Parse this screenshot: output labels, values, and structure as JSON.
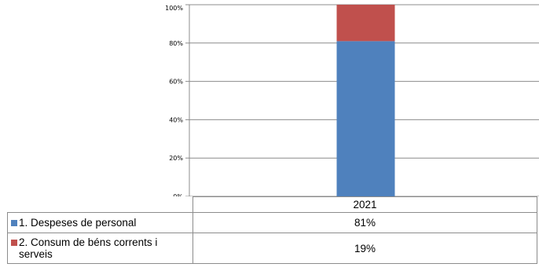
{
  "chart_data": {
    "type": "bar",
    "stacked": true,
    "percent_stacked": true,
    "categories": [
      "2021"
    ],
    "series": [
      {
        "name": "1. Despeses de personal",
        "values": [
          81
        ],
        "label": "81%",
        "color": "#4f81bd"
      },
      {
        "name": "2. Consum de béns corrents i serveis",
        "values": [
          19
        ],
        "label": "19%",
        "color": "#c0504d"
      }
    ],
    "ylim": [
      0,
      100
    ],
    "yticks": [
      "0%",
      "20%",
      "40%",
      "60%",
      "80%",
      "100%"
    ],
    "grid": true,
    "legend": "data-table"
  }
}
